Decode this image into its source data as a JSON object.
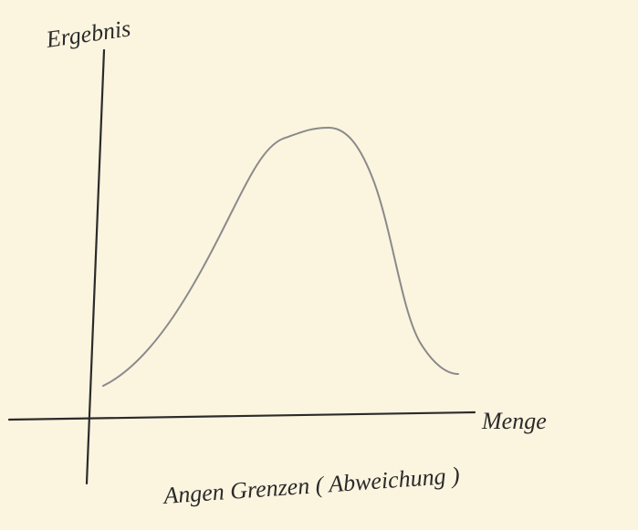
{
  "y_axis_label": "Ergebnis",
  "x_axis_label": "Menge",
  "caption": "Angen Grenzen ( Abweichung )"
}
